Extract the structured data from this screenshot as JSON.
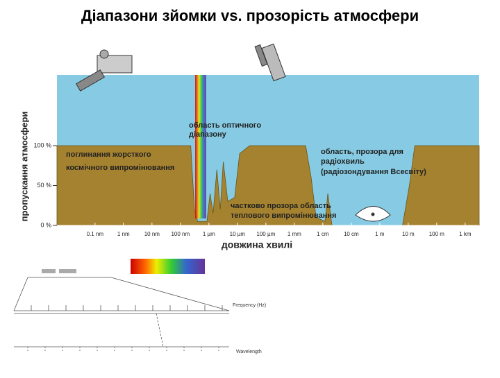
{
  "chart_data": {
    "type": "area",
    "title": "Діапазони зйомки vs. прозорість атмосфери",
    "x_label": "довжина хвилі",
    "y_label": "пропускання атмосфери",
    "xscale": "log",
    "xlim": [
      4.6e-12,
      3100.0
    ],
    "xticks": [
      {
        "value": 1e-10,
        "label": "0.1 nm"
      },
      {
        "value": 1e-09,
        "label": "1 nm"
      },
      {
        "value": 1e-08,
        "label": "10 nm"
      },
      {
        "value": 1e-07,
        "label": "100 nm"
      },
      {
        "value": 1e-06,
        "label": "1 µm"
      },
      {
        "value": 1e-05,
        "label": "10 µm"
      },
      {
        "value": 0.0001,
        "label": "100 µm"
      },
      {
        "value": 0.001,
        "label": "1 mm"
      },
      {
        "value": 0.01,
        "label": "1 cm"
      },
      {
        "value": 0.1,
        "label": "10 cm"
      },
      {
        "value": 1,
        "label": "1 m"
      },
      {
        "value": 10,
        "label": "10 m"
      },
      {
        "value": 100,
        "label": "100 m"
      },
      {
        "value": 1000,
        "label": "1 km"
      }
    ],
    "ylim": [
      0,
      100
    ],
    "yticks": [
      {
        "value": 0,
        "label": "0 %"
      },
      {
        "value": 50,
        "label": "50 %"
      },
      {
        "value": 100,
        "label": "100 %"
      }
    ],
    "x": [
      4.6e-12,
      2.3e-07,
      3.1e-07,
      4e-07,
      8.5e-07,
      1.1e-06,
      1.4e-06,
      1.9e-06,
      2.5e-06,
      3.2e-06,
      4.6e-06,
      8e-06,
      1.2e-05,
      2.7e-05,
      5.4e-05,
      0.0025,
      0.0039,
      0.0058,
      0.012,
      0.015,
      0.021,
      6.3,
      11,
      17,
      3100.0
    ],
    "values": [
      100,
      100,
      20,
      5,
      5,
      40,
      15,
      70,
      20,
      80,
      30,
      35,
      90,
      100,
      100,
      100,
      60,
      10,
      5,
      40,
      0,
      0,
      50,
      100,
      100
    ],
    "color": "#a5822f",
    "plot_color": "#86cbe3",
    "annotations": [
      {
        "text": "область оптичного"
      },
      {
        "text": "діапазону"
      },
      {
        "text": "поглинання жорсткого"
      },
      {
        "text": "космічного випромінювання"
      },
      {
        "text": "область, прозора для"
      },
      {
        "text": "радіохвиль"
      },
      {
        "text": "(радіозондування Всесвіту)"
      },
      {
        "text": "частково прозора область"
      },
      {
        "text": "теплового випромінювання"
      }
    ]
  },
  "spectrum_diagram": {
    "frequency_label": "Frequency (Hz)",
    "wavelength_label": "Wavelength"
  }
}
